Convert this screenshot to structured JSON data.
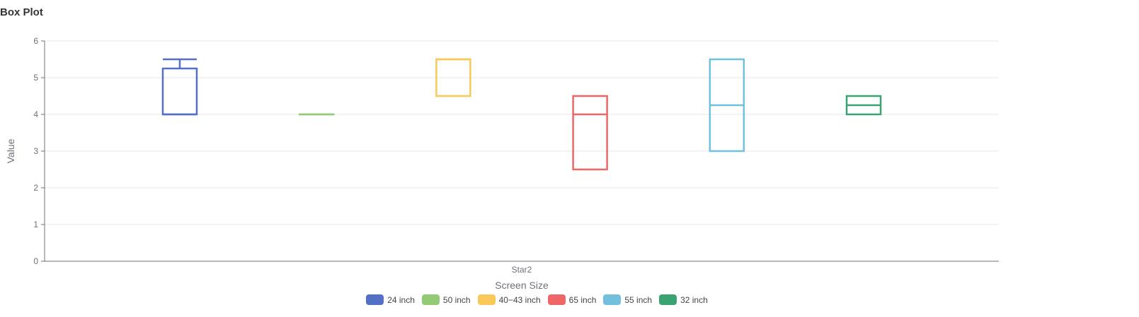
{
  "title": "Box Plot",
  "chart_data": {
    "type": "boxplot",
    "title": "Box Plot",
    "xlabel": "Screen Size",
    "ylabel": "Value",
    "categories": [
      "Star2"
    ],
    "ylim": [
      0,
      6
    ],
    "yticks": [
      0,
      1,
      2,
      3,
      4,
      5,
      6
    ],
    "grid": true,
    "legend_position": "bottom",
    "series": [
      {
        "name": "24 inch",
        "color": "#5470c6",
        "min": 4,
        "q1": 4,
        "median": 4,
        "q3": 5.25,
        "max": 5.5
      },
      {
        "name": "50 inch",
        "color": "#91cc75",
        "min": 4,
        "q1": 4,
        "median": 4,
        "q3": 4,
        "max": 4
      },
      {
        "name": "40−43 inch",
        "color": "#fac858",
        "min": 4.5,
        "q1": 4.5,
        "median": 5.5,
        "q3": 5.5,
        "max": 5.5
      },
      {
        "name": "65 inch",
        "color": "#ee6666",
        "min": 2.5,
        "q1": 2.5,
        "median": 4,
        "q3": 4.5,
        "max": 4.5
      },
      {
        "name": "55 inch",
        "color": "#73c0de",
        "min": 3,
        "q1": 3,
        "median": 4.25,
        "q3": 5.5,
        "max": 5.5
      },
      {
        "name": "32 inch",
        "color": "#3ba272",
        "min": 4,
        "q1": 4,
        "median": 4.25,
        "q3": 4.5,
        "max": 4.5
      }
    ]
  }
}
